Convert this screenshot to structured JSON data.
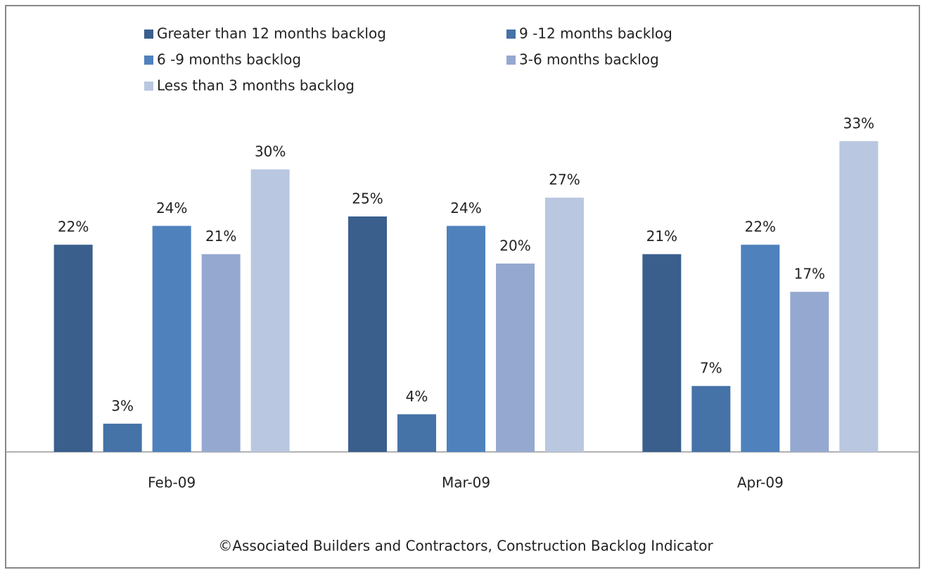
{
  "chart_data": {
    "type": "bar",
    "caption": "©Associated Builders and Contractors, Construction Backlog Indicator",
    "categories": [
      "Feb-09",
      "Mar-09",
      "Apr-09"
    ],
    "ylim": [
      0,
      35
    ],
    "series": [
      {
        "name": "Greater than 12 months backlog",
        "color": "#3a5f8d",
        "values": [
          22,
          25,
          21
        ],
        "value_labels": [
          "22%",
          "25%",
          "21%"
        ]
      },
      {
        "name": "9 -12 months backlog",
        "color": "#4572a7",
        "values": [
          3,
          4,
          7
        ],
        "value_labels": [
          "3%",
          "4%",
          "7%"
        ]
      },
      {
        "name": "6 -9 months backlog",
        "color": "#4f81bd",
        "values": [
          24,
          24,
          22
        ],
        "value_labels": [
          "24%",
          "24%",
          "22%"
        ]
      },
      {
        "name": "3-6 months backlog",
        "color": "#95a9d0",
        "values": [
          21,
          20,
          17
        ],
        "value_labels": [
          "21%",
          "20%",
          "17%"
        ]
      },
      {
        "name": "Less than 3 months backlog",
        "color": "#b9c7e0",
        "values": [
          30,
          27,
          33
        ],
        "value_labels": [
          "30%",
          "27%",
          "33%"
        ]
      }
    ]
  }
}
